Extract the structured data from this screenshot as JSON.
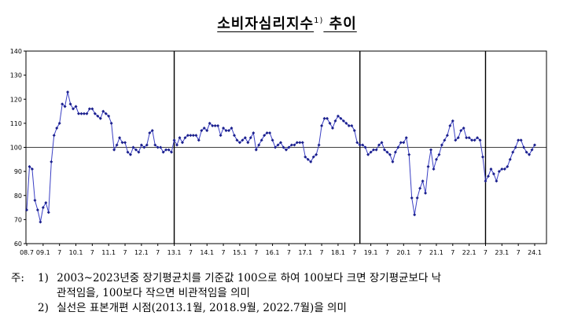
{
  "title": "소비자심리지수",
  "title_sup": "1)",
  "title_suffix": " 추이",
  "notes": {
    "prefix": "주:",
    "items": [
      {
        "num": "1)",
        "line1": "2003~2023년중 장기평균치를 기준값 100으로 하여 100보다 크면 장기평균보다 낙",
        "line2": "관적임을, 100보다 작으면 비관적임을 의미"
      },
      {
        "num": "2)",
        "line1": "실선은 표본개편 시점(2013.1월, 2018.9월, 2022.7월)을 의미"
      }
    ]
  },
  "chart_data": {
    "type": "line",
    "title": "소비자심리지수 추이",
    "ylim": [
      60,
      140
    ],
    "yticks": [
      60,
      70,
      80,
      90,
      100,
      110,
      120,
      130,
      140
    ],
    "reference_line": 100,
    "sample_revision_lines": [
      "2013.1",
      "2018.9",
      "2022.7"
    ],
    "xtick_labels": [
      {
        "label": "08.7",
        "index": 0
      },
      {
        "label": "09.1",
        "index": 6
      },
      {
        "label": "7",
        "index": 12
      },
      {
        "label": "10.1",
        "index": 18
      },
      {
        "label": "7",
        "index": 24
      },
      {
        "label": "11.1",
        "index": 30
      },
      {
        "label": "7",
        "index": 36
      },
      {
        "label": "12.1",
        "index": 42
      },
      {
        "label": "7",
        "index": 48
      },
      {
        "label": "13.1",
        "index": 54
      },
      {
        "label": "7",
        "index": 60
      },
      {
        "label": "14.1",
        "index": 66
      },
      {
        "label": "7",
        "index": 72
      },
      {
        "label": "15.1",
        "index": 78
      },
      {
        "label": "7",
        "index": 84
      },
      {
        "label": "16.1",
        "index": 90
      },
      {
        "label": "7",
        "index": 96
      },
      {
        "label": "17.1",
        "index": 102
      },
      {
        "label": "7",
        "index": 108
      },
      {
        "label": "18.1",
        "index": 114
      },
      {
        "label": "7",
        "index": 120
      },
      {
        "label": "19.1",
        "index": 126
      },
      {
        "label": "7",
        "index": 132
      },
      {
        "label": "20.1",
        "index": 138
      },
      {
        "label": "7",
        "index": 144
      },
      {
        "label": "21.1",
        "index": 150
      },
      {
        "label": "7",
        "index": 156
      },
      {
        "label": "22.1",
        "index": 162
      },
      {
        "label": "7",
        "index": 168
      },
      {
        "label": "23.1",
        "index": 174
      },
      {
        "label": "7",
        "index": 180
      },
      {
        "label": "24.1",
        "index": 186
      }
    ],
    "series": [
      {
        "values": [
          74,
          92,
          91,
          78,
          74,
          69,
          75,
          77,
          73,
          94,
          105,
          108,
          110,
          118,
          117,
          123,
          118,
          116,
          117,
          114,
          114,
          114,
          114,
          116,
          116,
          114,
          113,
          112,
          115,
          114,
          113,
          110,
          99,
          101,
          104,
          102,
          102,
          98,
          97,
          100,
          99,
          98,
          101,
          100,
          101,
          106,
          107,
          101,
          100,
          100,
          98,
          99,
          99,
          98,
          103,
          101,
          104,
          102,
          104,
          105,
          105,
          105,
          105,
          103,
          107,
          108,
          107,
          110,
          109,
          109,
          109,
          105,
          108,
          107,
          107,
          108,
          105,
          103,
          102,
          103,
          104,
          102,
          104,
          106,
          99,
          101,
          103,
          105,
          106,
          106,
          103,
          100,
          101,
          102,
          100,
          99,
          100,
          101,
          101,
          102,
          102,
          102,
          96,
          95,
          94,
          96,
          97,
          101,
          109,
          112,
          112,
          110,
          108,
          111,
          113,
          112,
          111,
          110,
          109,
          109,
          107,
          102,
          101,
          101,
          100,
          97,
          98,
          99,
          99,
          101,
          102,
          99,
          98,
          97,
          94,
          98,
          100,
          102,
          102,
          104,
          97,
          79,
          72,
          79,
          83,
          86,
          81,
          92,
          99,
          91,
          95,
          97,
          101,
          103,
          105,
          109,
          111,
          103,
          104,
          107,
          108,
          104,
          104,
          103,
          103,
          104,
          103,
          96,
          86,
          88,
          91,
          89,
          86,
          90,
          91,
          91,
          92,
          95,
          98,
          100,
          103,
          103,
          100,
          98,
          97,
          99,
          101
        ]
      }
    ]
  }
}
